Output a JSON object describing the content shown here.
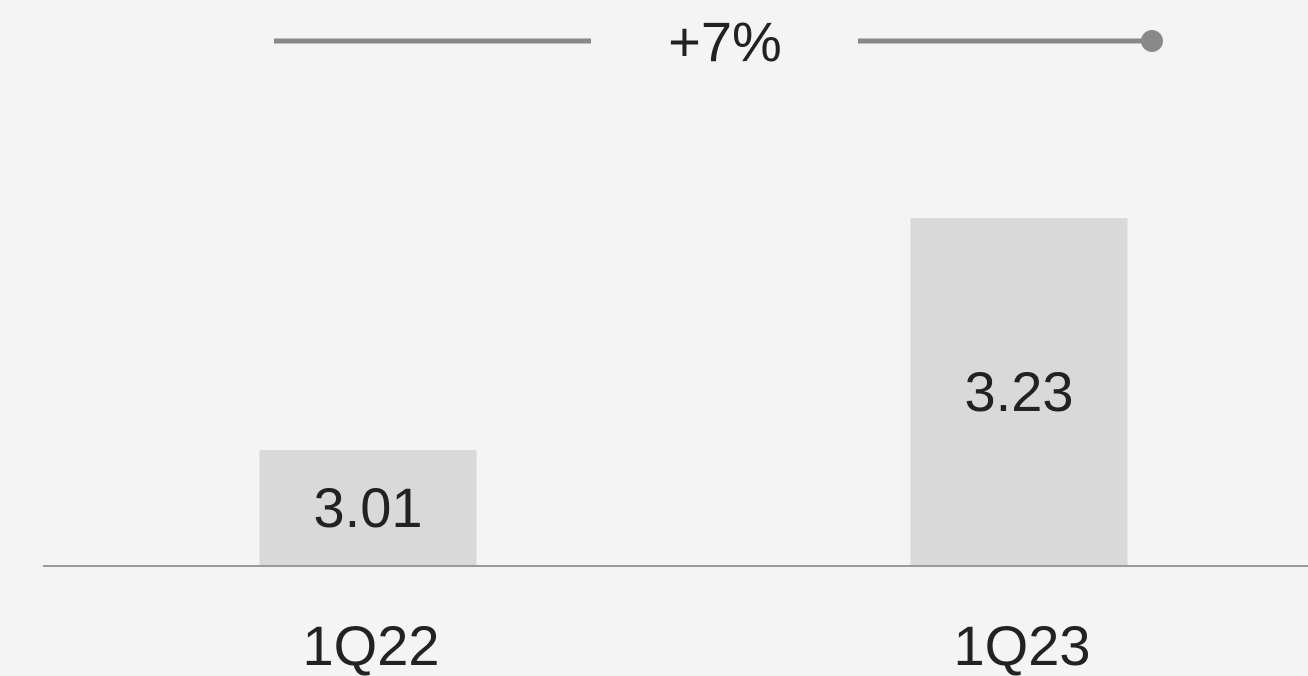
{
  "chart_data": {
    "type": "bar",
    "annotation": "+7%",
    "categories": [
      "1Q22",
      "1Q23"
    ],
    "values": [
      3.01,
      3.23
    ],
    "color": "#d9d9d9",
    "ylim": [
      2.9,
      3.25
    ]
  }
}
